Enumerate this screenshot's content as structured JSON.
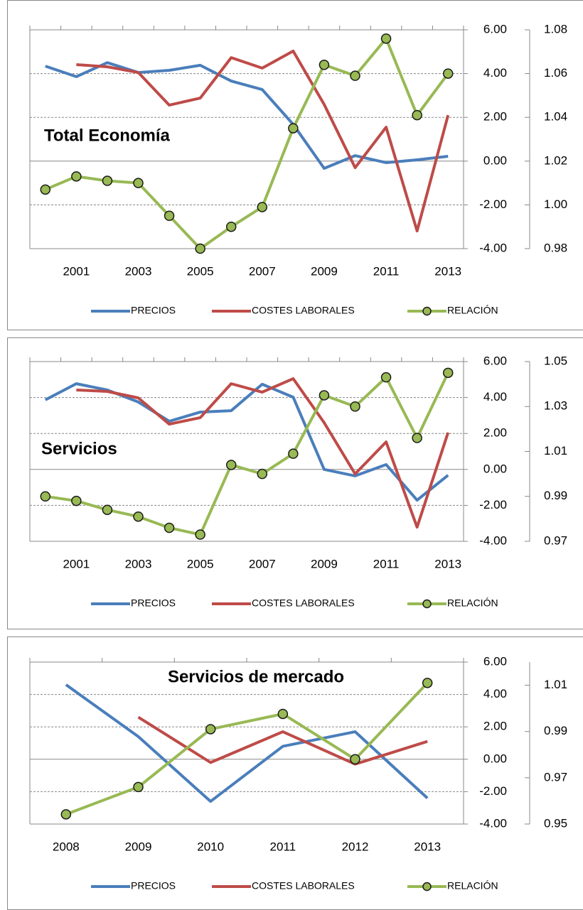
{
  "chart_data": [
    {
      "type": "line",
      "title": "Total Economía",
      "categories": [
        null,
        "2001",
        null,
        "2003",
        null,
        "2005",
        null,
        "2007",
        null,
        "2009",
        null,
        "2011",
        null,
        "2013"
      ],
      "series": [
        {
          "name": "PRECIOS",
          "color": "#4a7ebb",
          "values": [
            4.34,
            3.86,
            4.5,
            4.05,
            4.15,
            4.38,
            3.66,
            3.27,
            1.68,
            -0.33,
            0.25,
            -0.07,
            0.06,
            0.22
          ]
        },
        {
          "name": "COSTES LABORALES",
          "color": "#be4b48",
          "values": [
            null,
            4.41,
            4.31,
            4.05,
            2.56,
            2.88,
            4.73,
            4.25,
            5.03,
            2.59,
            -0.3,
            1.55,
            -3.19,
            2.1
          ]
        },
        {
          "name": "RELACIÓN",
          "color": "#98b954",
          "axis": "y2",
          "marker": "circle",
          "values": [
            1.007,
            1.013,
            1.011,
            1.01,
            0.995,
            0.98,
            0.99,
            0.999,
            1.035,
            1.064,
            1.059,
            1.076,
            1.041,
            1.06
          ]
        }
      ],
      "ylim": [
        -4,
        6
      ],
      "yticks": [
        {
          "value": -4,
          "label": "-4.00"
        },
        {
          "value": -2,
          "label": "-2.00"
        },
        {
          "value": 0,
          "label": "0.00"
        },
        {
          "value": 2,
          "label": "2.00"
        },
        {
          "value": 4,
          "label": "4.00"
        },
        {
          "value": 6,
          "label": "6.00"
        }
      ],
      "y2lim": [
        0.98,
        1.08
      ],
      "y2ticks": [
        0.98,
        {
          "value": 1,
          "label": "1.00"
        },
        1.02,
        1.04,
        1.06,
        1.08
      ],
      "grid": true
    },
    {
      "type": "line",
      "title": "Servicios",
      "categories": [
        null,
        "2001",
        null,
        "2003",
        null,
        "2005",
        null,
        "2007",
        null,
        "2009",
        null,
        "2011",
        null,
        "2013"
      ],
      "series": [
        {
          "name": "PRECIOS",
          "color": "#4a7ebb",
          "values": [
            3.87,
            4.77,
            4.42,
            3.75,
            2.68,
            3.19,
            3.27,
            4.74,
            4.02,
            0.0,
            -0.36,
            0.27,
            -1.71,
            -0.32
          ]
        },
        {
          "name": "COSTES LABORALES",
          "color": "#be4b48",
          "values": [
            null,
            4.42,
            4.34,
            3.98,
            2.52,
            2.88,
            4.77,
            4.3,
            5.05,
            2.6,
            -0.25,
            1.53,
            -3.21,
            2.05
          ]
        },
        {
          "name": "RELACIÓN",
          "color": "#98b954",
          "axis": "y2",
          "marker": "circle",
          "values": [
            0.99,
            0.988,
            0.984,
            0.981,
            0.976,
            0.973,
            1.004,
            1.0,
            1.009,
            1.035,
            1.03,
            1.043,
            1.016,
            1.045
          ]
        }
      ],
      "ylim": [
        -4,
        6
      ],
      "yticks": [
        {
          "value": -4,
          "label": "-4.00"
        },
        {
          "value": -2,
          "label": "-2.00"
        },
        {
          "value": 0,
          "label": "0.00"
        },
        {
          "value": 2,
          "label": "2.00"
        },
        {
          "value": 4,
          "label": "4.00"
        },
        {
          "value": 6,
          "label": "6.00"
        }
      ],
      "y2lim": [
        0.97,
        1.05
      ],
      "y2ticks": [
        0.97,
        0.99,
        1.01,
        1.03,
        1.05
      ],
      "grid": true
    },
    {
      "type": "line",
      "title": "Servicios de mercado",
      "categories": [
        "2008",
        "2009",
        "2010",
        "2011",
        "2012",
        "2013"
      ],
      "series": [
        {
          "name": "PRECIOS",
          "color": "#4a7ebb",
          "values": [
            4.6,
            1.4,
            -2.6,
            0.8,
            1.7,
            -2.4
          ]
        },
        {
          "name": "COSTES LABORALES",
          "color": "#be4b48",
          "values": [
            null,
            2.6,
            -0.2,
            1.7,
            -0.3,
            1.1
          ]
        },
        {
          "name": "RELACIÓN",
          "color": "#98b954",
          "axis": "y2",
          "marker": "circle",
          "values": [
            0.9542,
            0.966,
            0.991,
            0.9976,
            0.978,
            1.011
          ]
        }
      ],
      "ylim": [
        -4,
        6
      ],
      "yticks": [
        {
          "value": -4,
          "label": "-4.00"
        },
        {
          "value": -2,
          "label": "-2.00"
        },
        {
          "value": 0,
          "label": "0.00"
        },
        {
          "value": 2,
          "label": "2.00"
        },
        {
          "value": 4,
          "label": "4.00"
        },
        {
          "value": 6,
          "label": "6.00"
        }
      ],
      "y2lim": [
        0.95,
        1.02
      ],
      "y2ticks": [
        0.95,
        0.97,
        0.99,
        1.01
      ],
      "grid": true
    }
  ]
}
